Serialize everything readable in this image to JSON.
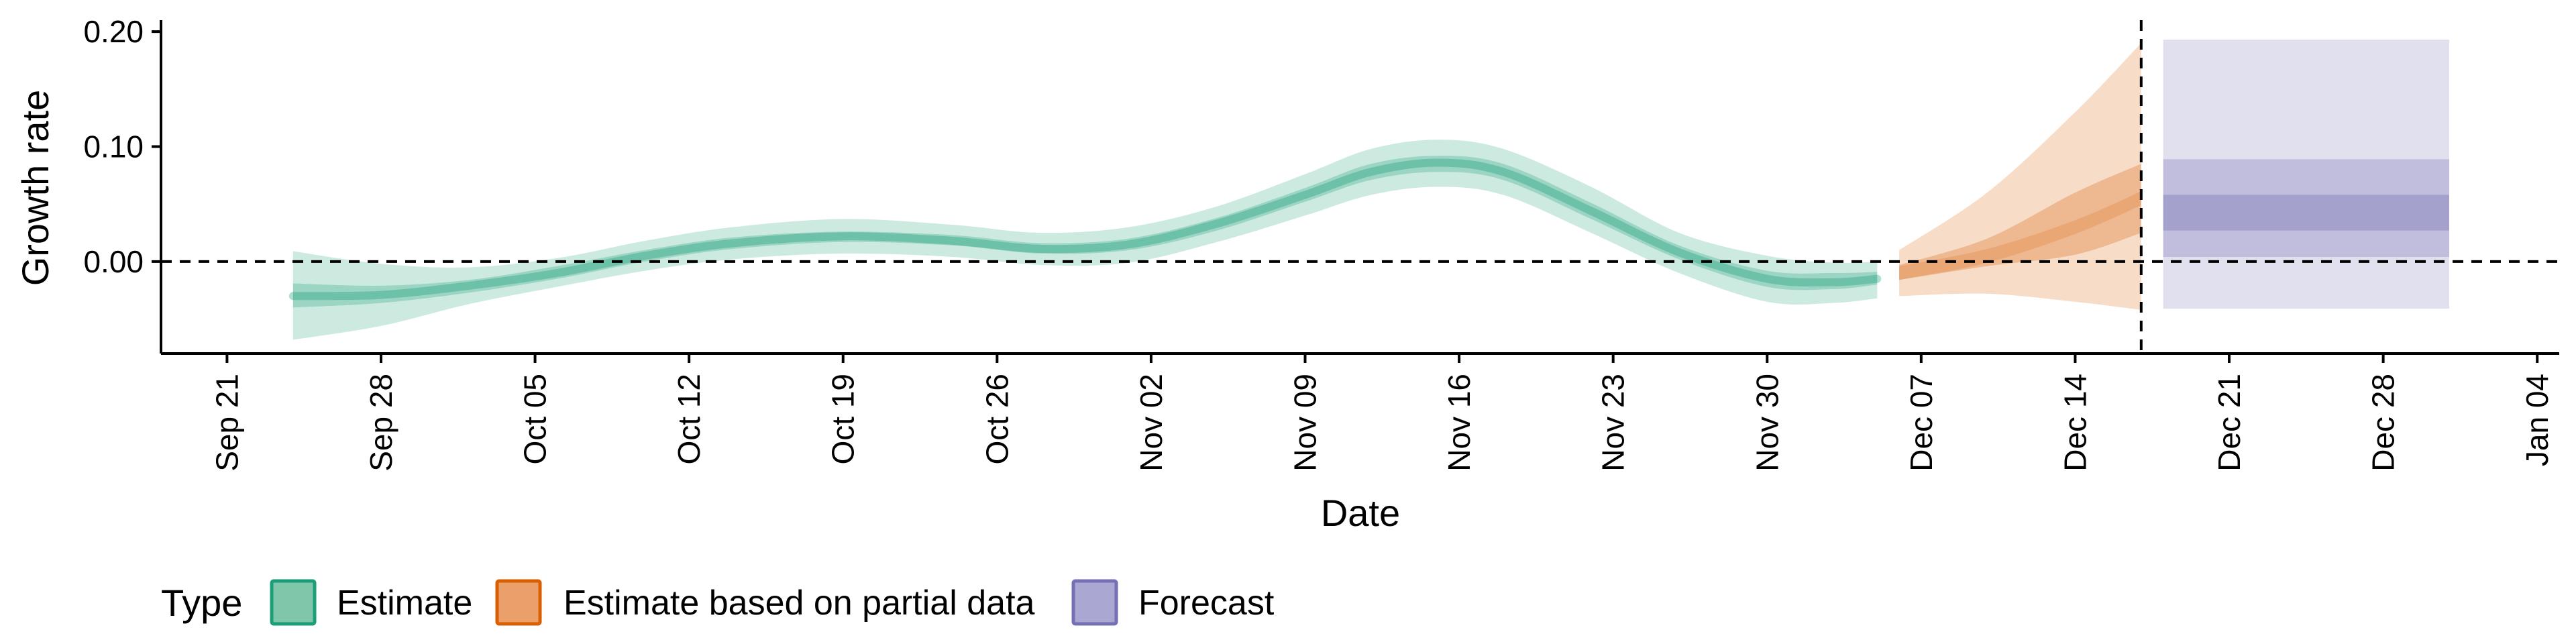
{
  "chart_data": {
    "type": "area",
    "xlabel": "Date",
    "ylabel": "Growth rate",
    "x_range": [
      "2020-09-18",
      "2021-01-05"
    ],
    "ylim": [
      -0.08,
      0.21
    ],
    "y_ticks": [
      0.0,
      0.1,
      0.2
    ],
    "y_tick_labels": [
      "0.00",
      "0.10",
      "0.20"
    ],
    "x_ticks": [
      "2020-09-21",
      "2020-09-28",
      "2020-10-05",
      "2020-10-12",
      "2020-10-19",
      "2020-10-26",
      "2020-11-02",
      "2020-11-09",
      "2020-11-16",
      "2020-11-23",
      "2020-11-30",
      "2020-12-07",
      "2020-12-14",
      "2020-12-21",
      "2020-12-28",
      "2021-01-04"
    ],
    "x_tick_labels": [
      "Sep 21",
      "Sep 28",
      "Oct 05",
      "Oct 12",
      "Oct 19",
      "Oct 26",
      "Nov 02",
      "Nov 09",
      "Nov 16",
      "Nov 23",
      "Nov 30",
      "Dec 07",
      "Dec 14",
      "Dec 21",
      "Dec 28",
      "Jan 04"
    ],
    "hline": 0.0,
    "vline": "2020-12-17",
    "grid": false,
    "legend": {
      "title": "Type",
      "position": "bottom",
      "items": [
        {
          "label": "Estimate",
          "fill": "#7fc6ab",
          "stroke": "#1b9e77"
        },
        {
          "label": "Estimate based on partial data",
          "fill": "#eba06b",
          "stroke": "#d95f02"
        },
        {
          "label": "Forecast",
          "fill": "#aaa8d2",
          "stroke": "#7570b3"
        }
      ]
    },
    "series": [
      {
        "name": "Estimate",
        "color": "#1b9e77",
        "points": [
          {
            "x": "2020-09-24",
            "median": -0.03,
            "lo50": -0.04,
            "hi50": -0.019,
            "lo90": -0.068,
            "hi90": 0.009
          },
          {
            "x": "2020-09-28",
            "median": -0.029,
            "lo50": -0.036,
            "hi50": -0.021,
            "lo90": -0.056,
            "hi90": -0.002
          },
          {
            "x": "2020-10-02",
            "median": -0.021,
            "lo50": -0.027,
            "hi50": -0.016,
            "lo90": -0.037,
            "hi90": -0.005
          },
          {
            "x": "2020-10-06",
            "median": -0.01,
            "lo50": -0.015,
            "hi50": -0.004,
            "lo90": -0.022,
            "hi90": 0.003
          },
          {
            "x": "2020-10-10",
            "median": 0.005,
            "lo50": 0.0,
            "hi50": 0.01,
            "lo90": -0.008,
            "hi90": 0.018
          },
          {
            "x": "2020-10-14",
            "median": 0.016,
            "lo50": 0.011,
            "hi50": 0.021,
            "lo90": 0.002,
            "hi90": 0.03
          },
          {
            "x": "2020-10-19",
            "median": 0.022,
            "lo50": 0.017,
            "hi50": 0.026,
            "lo90": 0.007,
            "hi90": 0.037
          },
          {
            "x": "2020-10-24",
            "median": 0.018,
            "lo50": 0.014,
            "hi50": 0.023,
            "lo90": 0.004,
            "hi90": 0.032
          },
          {
            "x": "2020-10-28",
            "median": 0.011,
            "lo50": 0.007,
            "hi50": 0.016,
            "lo90": -0.003,
            "hi90": 0.025
          },
          {
            "x": "2020-11-01",
            "median": 0.015,
            "lo50": 0.01,
            "hi50": 0.02,
            "lo90": -0.001,
            "hi90": 0.03
          },
          {
            "x": "2020-11-05",
            "median": 0.033,
            "lo50": 0.027,
            "hi50": 0.038,
            "lo90": 0.017,
            "hi90": 0.048
          },
          {
            "x": "2020-11-09",
            "median": 0.058,
            "lo50": 0.052,
            "hi50": 0.064,
            "lo90": 0.04,
            "hi90": 0.076
          },
          {
            "x": "2020-11-12",
            "median": 0.078,
            "lo50": 0.071,
            "hi50": 0.085,
            "lo90": 0.058,
            "hi90": 0.098
          },
          {
            "x": "2020-11-15",
            "median": 0.086,
            "lo50": 0.078,
            "hi50": 0.092,
            "lo90": 0.065,
            "hi90": 0.106
          },
          {
            "x": "2020-11-18",
            "median": 0.078,
            "lo50": 0.071,
            "hi50": 0.085,
            "lo90": 0.058,
            "hi90": 0.098
          },
          {
            "x": "2020-11-22",
            "median": 0.044,
            "lo50": 0.037,
            "hi50": 0.051,
            "lo90": 0.025,
            "hi90": 0.065
          },
          {
            "x": "2020-11-26",
            "median": 0.008,
            "lo50": 0.002,
            "hi50": 0.014,
            "lo90": -0.01,
            "hi90": 0.025
          },
          {
            "x": "2020-11-30",
            "median": -0.015,
            "lo50": -0.022,
            "hi50": -0.008,
            "lo90": -0.035,
            "hi90": 0.005
          },
          {
            "x": "2020-12-03",
            "median": -0.018,
            "lo50": -0.024,
            "hi50": -0.01,
            "lo90": -0.036,
            "hi90": -0.001
          },
          {
            "x": "2020-12-05",
            "median": -0.015,
            "lo50": -0.02,
            "hi50": -0.009,
            "lo90": -0.032,
            "hi90": 0.0
          }
        ]
      },
      {
        "name": "Estimate based on partial data",
        "color": "#d95f02",
        "points": [
          {
            "x": "2020-12-06",
            "median": -0.01,
            "lo50": -0.016,
            "hi50": -0.003,
            "lo90": -0.03,
            "hi90": 0.01
          },
          {
            "x": "2020-12-10",
            "median": 0.005,
            "lo50": -0.004,
            "hi50": 0.02,
            "lo90": -0.028,
            "hi90": 0.06
          },
          {
            "x": "2020-12-14",
            "median": 0.03,
            "lo50": 0.006,
            "hi50": 0.06,
            "lo90": -0.035,
            "hi90": 0.13
          },
          {
            "x": "2020-12-17",
            "median": 0.055,
            "lo50": 0.025,
            "hi50": 0.085,
            "lo90": -0.042,
            "hi90": 0.19
          }
        ]
      },
      {
        "name": "Forecast",
        "color": "#7570b3",
        "points": [
          {
            "x": "2020-12-18",
            "median": 0.043,
            "lo50": 0.027,
            "hi50": 0.058,
            "lo90": 0.004,
            "hi90": 0.089,
            "lo_outer": -0.041,
            "hi_outer": 0.193
          },
          {
            "x": "2020-12-31",
            "median": 0.043,
            "lo50": 0.027,
            "hi50": 0.058,
            "lo90": 0.004,
            "hi90": 0.089,
            "lo_outer": -0.041,
            "hi_outer": 0.193
          }
        ]
      }
    ]
  }
}
